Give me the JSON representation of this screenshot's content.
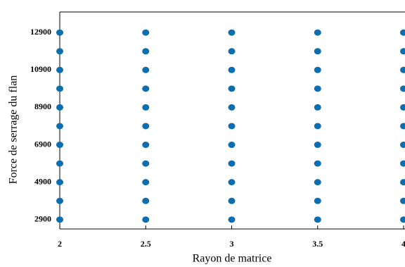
{
  "chart_data": {
    "type": "scatter",
    "xlabel": "Rayon de matrice",
    "ylabel": "Force de serrage du flan",
    "xlim": [
      2,
      4
    ],
    "ylim": [
      2400,
      14000
    ],
    "xticks": [
      2,
      2.5,
      3,
      3.5,
      4
    ],
    "yticks": [
      2900,
      4900,
      6900,
      8900,
      10900,
      12900
    ],
    "series": [
      {
        "color": "#0a6eb0",
        "x": [
          2,
          2,
          2,
          2,
          2,
          2,
          2,
          2,
          2,
          2,
          2,
          2.5,
          2.5,
          2.5,
          2.5,
          2.5,
          2.5,
          2.5,
          2.5,
          2.5,
          2.5,
          2.5,
          3,
          3,
          3,
          3,
          3,
          3,
          3,
          3,
          3,
          3,
          3,
          3.5,
          3.5,
          3.5,
          3.5,
          3.5,
          3.5,
          3.5,
          3.5,
          3.5,
          3.5,
          3.5,
          4,
          4,
          4,
          4,
          4,
          4,
          4,
          4,
          4,
          4,
          4
        ],
        "y": [
          2900,
          3900,
          4900,
          5900,
          6900,
          7900,
          8900,
          9900,
          10900,
          11900,
          12900,
          2900,
          3900,
          4900,
          5900,
          6900,
          7900,
          8900,
          9900,
          10900,
          11900,
          12900,
          2900,
          3900,
          4900,
          5900,
          6900,
          7900,
          8900,
          9900,
          10900,
          11900,
          12900,
          2900,
          3900,
          4900,
          5900,
          6900,
          7900,
          8900,
          9900,
          10900,
          11900,
          12900,
          2900,
          3900,
          4900,
          5900,
          6900,
          7900,
          8900,
          9900,
          10900,
          11900,
          12900
        ]
      }
    ]
  }
}
